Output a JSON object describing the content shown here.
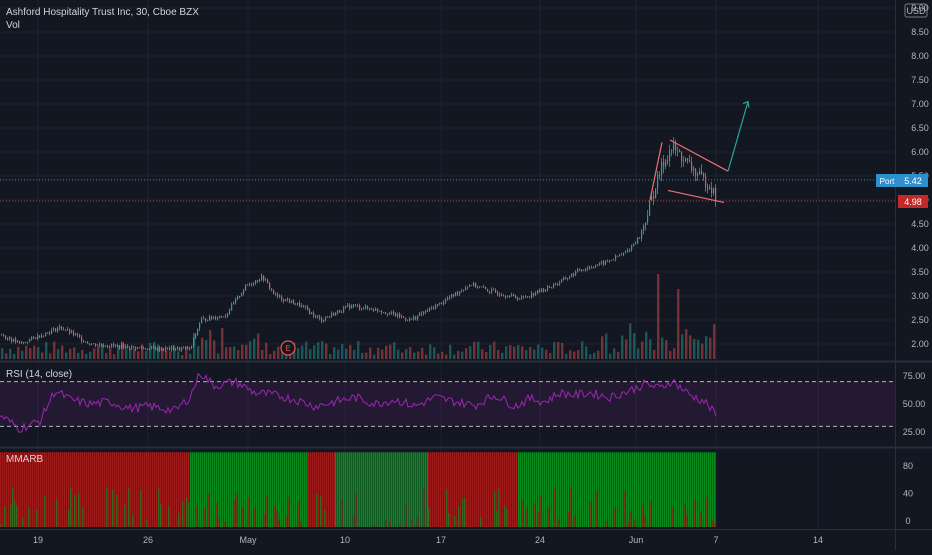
{
  "header": {
    "symbol_line": "Ashford Hospitality Trust Inc, 30, Cboe BZX",
    "volume_label": "Vol",
    "currency": "USD"
  },
  "rsi_label": "RSI (14, close)",
  "mmarb_label": "MMARB",
  "badges": {
    "port_label": "Port",
    "current_price": "5.42",
    "support_price": "4.98"
  },
  "earnings_marker": "E",
  "colors": {
    "up": "#26a69a",
    "down": "#ef5350",
    "rsi": "#9c27b0",
    "mmarb_green": "#0b8a1f",
    "mmarb_red": "#9e1c1c",
    "projection": "#26a69a",
    "pattern": "#f06f6f"
  },
  "chart_data": [
    {
      "type": "candlestick",
      "title": "Ashford Hospitality Trust Inc, 30, Cboe BZX",
      "x_ticks": [
        "19",
        "26",
        "May",
        "10",
        "17",
        "24",
        "Jun",
        "7",
        "14"
      ],
      "y_ticks": [
        "2.00",
        "2.50",
        "3.00",
        "3.50",
        "4.00",
        "4.50",
        "5.00",
        "5.50",
        "6.00",
        "6.50",
        "7.00",
        "7.50",
        "8.00",
        "8.50",
        "9.00"
      ],
      "ylim": [
        1.7,
        9.1
      ],
      "price_path": [
        [
          0,
          2.2
        ],
        [
          20,
          2.0
        ],
        [
          30,
          2.1
        ],
        [
          60,
          2.35
        ],
        [
          90,
          2.0
        ],
        [
          120,
          1.95
        ],
        [
          150,
          1.9
        ],
        [
          190,
          1.9
        ],
        [
          200,
          2.5
        ],
        [
          225,
          2.6
        ],
        [
          245,
          3.2
        ],
        [
          262,
          3.4
        ],
        [
          275,
          3.0
        ],
        [
          300,
          2.8
        ],
        [
          320,
          2.5
        ],
        [
          350,
          2.8
        ],
        [
          380,
          2.7
        ],
        [
          410,
          2.5
        ],
        [
          440,
          2.85
        ],
        [
          470,
          3.25
        ],
        [
          490,
          3.1
        ],
        [
          520,
          2.95
        ],
        [
          545,
          3.15
        ],
        [
          560,
          3.3
        ],
        [
          580,
          3.55
        ],
        [
          605,
          3.7
        ],
        [
          625,
          3.9
        ],
        [
          640,
          4.25
        ],
        [
          650,
          4.95
        ],
        [
          662,
          5.75
        ],
        [
          672,
          6.1
        ],
        [
          685,
          5.8
        ],
        [
          698,
          5.5
        ],
        [
          710,
          5.3
        ],
        [
          716,
          5.0
        ]
      ],
      "volume_bars": 180,
      "volume_spikes": [
        [
          658,
          85
        ],
        [
          676,
          70
        ],
        [
          695,
          90
        ],
        [
          712,
          35
        ]
      ],
      "support_line": 4.98,
      "current_line": 5.42,
      "pattern_lines": [
        [
          [
            650,
            5.0
          ],
          [
            662,
            6.2
          ]
        ],
        [
          [
            670,
            6.25
          ],
          [
            728,
            5.6
          ]
        ],
        [
          [
            668,
            5.2
          ],
          [
            724,
            4.95
          ]
        ]
      ],
      "projection_arrow": [
        [
          728,
          5.6
        ],
        [
          748,
          7.05
        ]
      ],
      "earnings_x": 288
    },
    {
      "type": "line",
      "title": "RSI (14, close)",
      "y_ticks": [
        "25.00",
        "50.00",
        "75.00"
      ],
      "bands": [
        30,
        70
      ],
      "ylim": [
        20,
        85
      ],
      "path": [
        [
          0,
          40
        ],
        [
          20,
          28
        ],
        [
          40,
          35
        ],
        [
          55,
          62
        ],
        [
          70,
          54
        ],
        [
          90,
          50
        ],
        [
          110,
          52
        ],
        [
          130,
          46
        ],
        [
          150,
          48
        ],
        [
          175,
          44
        ],
        [
          190,
          56
        ],
        [
          200,
          78
        ],
        [
          215,
          66
        ],
        [
          235,
          70
        ],
        [
          255,
          60
        ],
        [
          275,
          58
        ],
        [
          295,
          54
        ],
        [
          315,
          48
        ],
        [
          335,
          52
        ],
        [
          355,
          56
        ],
        [
          375,
          50
        ],
        [
          395,
          54
        ],
        [
          415,
          48
        ],
        [
          435,
          56
        ],
        [
          455,
          52
        ],
        [
          475,
          49
        ],
        [
          495,
          58
        ],
        [
          515,
          48
        ],
        [
          530,
          55
        ],
        [
          545,
          52
        ],
        [
          560,
          60
        ],
        [
          575,
          58
        ],
        [
          590,
          60
        ],
        [
          610,
          56
        ],
        [
          630,
          62
        ],
        [
          645,
          68
        ],
        [
          660,
          64
        ],
        [
          672,
          71
        ],
        [
          690,
          58
        ],
        [
          705,
          52
        ],
        [
          716,
          40
        ]
      ]
    },
    {
      "type": "bar",
      "title": "MMARB",
      "y_ticks": [
        "0",
        "40",
        "80"
      ],
      "ylim": [
        0,
        100
      ],
      "regimes": [
        [
          0,
          190,
          "red"
        ],
        [
          190,
          308,
          "green"
        ],
        [
          308,
          335,
          "red"
        ],
        [
          335,
          428,
          "green"
        ],
        [
          428,
          508,
          "red"
        ],
        [
          508,
          518,
          "red"
        ],
        [
          518,
          716,
          "green"
        ]
      ]
    }
  ]
}
